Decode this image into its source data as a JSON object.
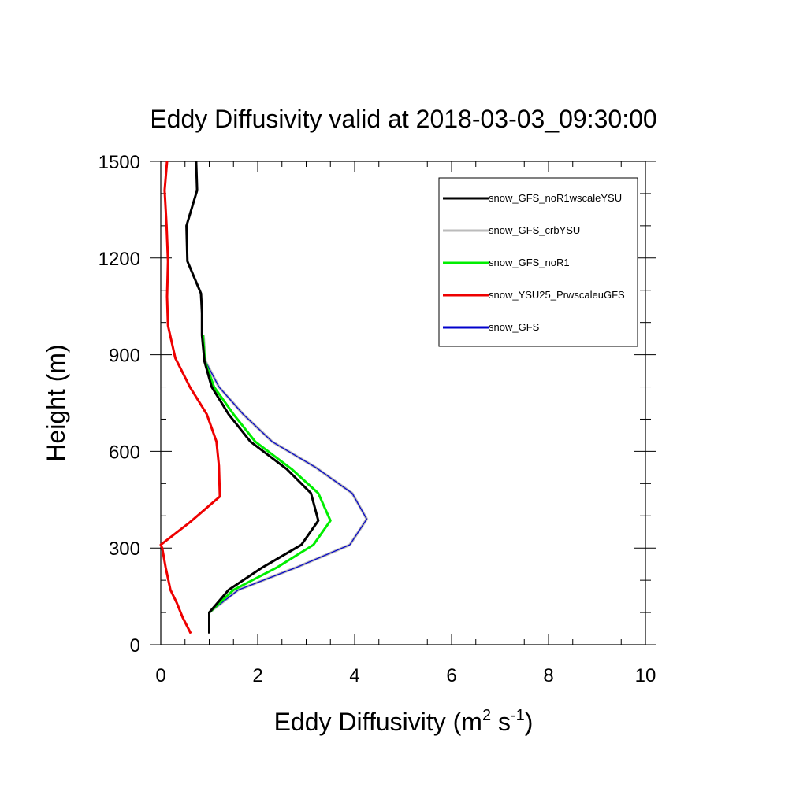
{
  "chart_data": {
    "type": "line",
    "title": "Eddy Diffusivity valid at 2018-03-03_09:30:00",
    "xlabel": {
      "base": "Eddy Diffusivity (m",
      "sup1": "2",
      "mid": " s",
      "sup2": "-1",
      "end": ")"
    },
    "ylabel": "Height (m)",
    "xlim": [
      0,
      10
    ],
    "ylim": [
      0,
      1500
    ],
    "xticks": [
      0,
      2,
      4,
      6,
      8,
      10
    ],
    "yticks": [
      0,
      300,
      600,
      900,
      1200,
      1500
    ],
    "x_minor_step": 0.5,
    "y_minor_step": 100,
    "grid": false,
    "legend_position": "top-right",
    "series": [
      {
        "name": "snow_GFS_noR1wscaleYSU",
        "color": "#000000",
        "points": [
          [
            1.0,
            35
          ],
          [
            1.0,
            100
          ],
          [
            1.4,
            170
          ],
          [
            2.1,
            240
          ],
          [
            2.9,
            310
          ],
          [
            3.25,
            385
          ],
          [
            3.1,
            470
          ],
          [
            2.6,
            545
          ],
          [
            1.85,
            630
          ],
          [
            1.4,
            715
          ],
          [
            1.05,
            800
          ],
          [
            0.9,
            880
          ],
          [
            0.85,
            960
          ],
          [
            0.85,
            1030
          ],
          [
            0.83,
            1090
          ],
          [
            0.55,
            1190
          ],
          [
            0.53,
            1300
          ],
          [
            0.75,
            1410
          ],
          [
            0.73,
            1500
          ]
        ]
      },
      {
        "name": "snow_GFS_crbYSU",
        "color": "#bbbbbb",
        "points": [
          [
            1.0,
            100
          ],
          [
            1.6,
            170
          ],
          [
            2.8,
            240
          ],
          [
            3.9,
            310
          ],
          [
            4.25,
            390
          ],
          [
            3.95,
            470
          ],
          [
            3.2,
            550
          ],
          [
            2.3,
            630
          ],
          [
            1.7,
            715
          ],
          [
            1.2,
            800
          ],
          [
            0.92,
            880
          ],
          [
            0.88,
            960
          ]
        ]
      },
      {
        "name": "snow_GFS_noR1",
        "color": "#00ee00",
        "points": [
          [
            1.0,
            100
          ],
          [
            1.5,
            170
          ],
          [
            2.4,
            240
          ],
          [
            3.15,
            310
          ],
          [
            3.5,
            385
          ],
          [
            3.25,
            470
          ],
          [
            2.7,
            545
          ],
          [
            1.95,
            630
          ],
          [
            1.5,
            715
          ],
          [
            1.1,
            800
          ],
          [
            0.91,
            880
          ],
          [
            0.87,
            960
          ]
        ]
      },
      {
        "name": "snow_YSU25_PrwscaleuGFS",
        "color": "#ee0000",
        "points": [
          [
            0.62,
            35
          ],
          [
            0.45,
            85
          ],
          [
            0.33,
            130
          ],
          [
            0.2,
            170
          ],
          [
            0.1,
            240
          ],
          [
            0.03,
            300
          ],
          [
            0.0,
            310
          ],
          [
            0.6,
            380
          ],
          [
            1.22,
            460
          ],
          [
            1.2,
            555
          ],
          [
            1.15,
            630
          ],
          [
            0.95,
            715
          ],
          [
            0.6,
            800
          ],
          [
            0.3,
            890
          ],
          [
            0.15,
            990
          ],
          [
            0.13,
            1080
          ],
          [
            0.15,
            1190
          ],
          [
            0.12,
            1300
          ],
          [
            0.08,
            1410
          ],
          [
            0.13,
            1500
          ]
        ]
      },
      {
        "name": "snow_GFS",
        "color": "#0000cc",
        "points": [
          [
            1.0,
            100
          ],
          [
            1.6,
            170
          ],
          [
            2.8,
            240
          ],
          [
            3.9,
            310
          ],
          [
            4.25,
            390
          ],
          [
            3.95,
            470
          ],
          [
            3.2,
            550
          ],
          [
            2.3,
            630
          ],
          [
            1.7,
            715
          ],
          [
            1.2,
            800
          ],
          [
            0.92,
            880
          ],
          [
            0.88,
            960
          ]
        ]
      }
    ]
  }
}
